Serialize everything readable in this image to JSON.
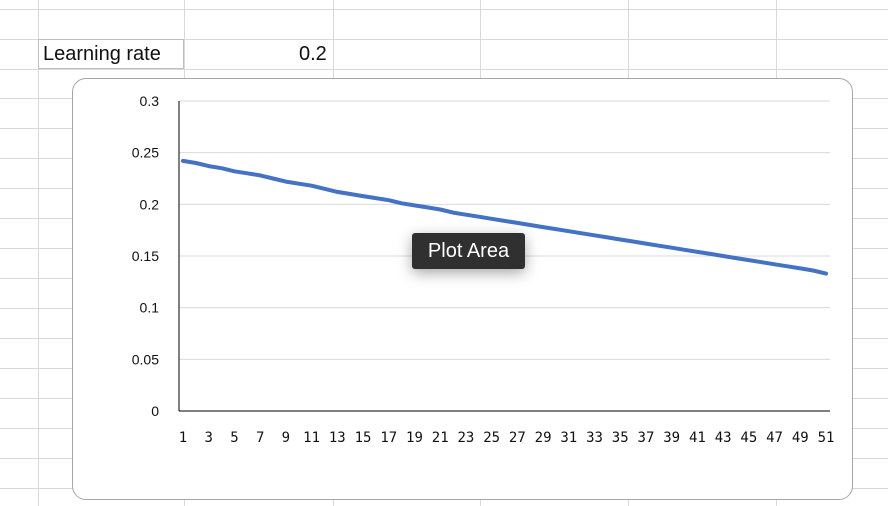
{
  "sheet": {
    "cells": {
      "label": "Learning rate",
      "value": "0.2"
    }
  },
  "tooltip": {
    "text": "Plot Area"
  },
  "colors": {
    "series_line": "#4472c4",
    "gridline": "#d9d9d9",
    "axis": "#000000"
  },
  "chart_data": {
    "type": "line",
    "title": "",
    "xlabel": "",
    "ylabel": "",
    "x": [
      1,
      2,
      3,
      4,
      5,
      6,
      7,
      8,
      9,
      10,
      11,
      12,
      13,
      14,
      15,
      16,
      17,
      18,
      19,
      20,
      21,
      22,
      23,
      24,
      25,
      26,
      27,
      28,
      29,
      30,
      31,
      32,
      33,
      34,
      35,
      36,
      37,
      38,
      39,
      40,
      41,
      42,
      43,
      44,
      45,
      46,
      47,
      48,
      49,
      50,
      51
    ],
    "x_tick_labels": [
      "1",
      "3",
      "5",
      "7",
      "9",
      "11",
      "13",
      "15",
      "17",
      "19",
      "21",
      "23",
      "25",
      "27",
      "29",
      "31",
      "33",
      "35",
      "37",
      "39",
      "41",
      "43",
      "45",
      "47",
      "49",
      "51"
    ],
    "y_tick_labels": [
      "0",
      "0.05",
      "0.1",
      "0.15",
      "0.2",
      "0.25",
      "0.3"
    ],
    "ylim": [
      0,
      0.3
    ],
    "grid": true,
    "legend": "none",
    "series": [
      {
        "values": [
          0.242,
          0.24,
          0.237,
          0.235,
          0.232,
          0.23,
          0.228,
          0.225,
          0.222,
          0.22,
          0.218,
          0.215,
          0.212,
          0.21,
          0.208,
          0.206,
          0.204,
          0.201,
          0.199,
          0.197,
          0.195,
          0.192,
          0.19,
          0.188,
          0.186,
          0.184,
          0.182,
          0.18,
          0.178,
          0.176,
          0.174,
          0.172,
          0.17,
          0.168,
          0.166,
          0.164,
          0.162,
          0.16,
          0.158,
          0.156,
          0.154,
          0.152,
          0.15,
          0.148,
          0.146,
          0.144,
          0.142,
          0.14,
          0.138,
          0.136,
          0.133
        ]
      }
    ]
  }
}
